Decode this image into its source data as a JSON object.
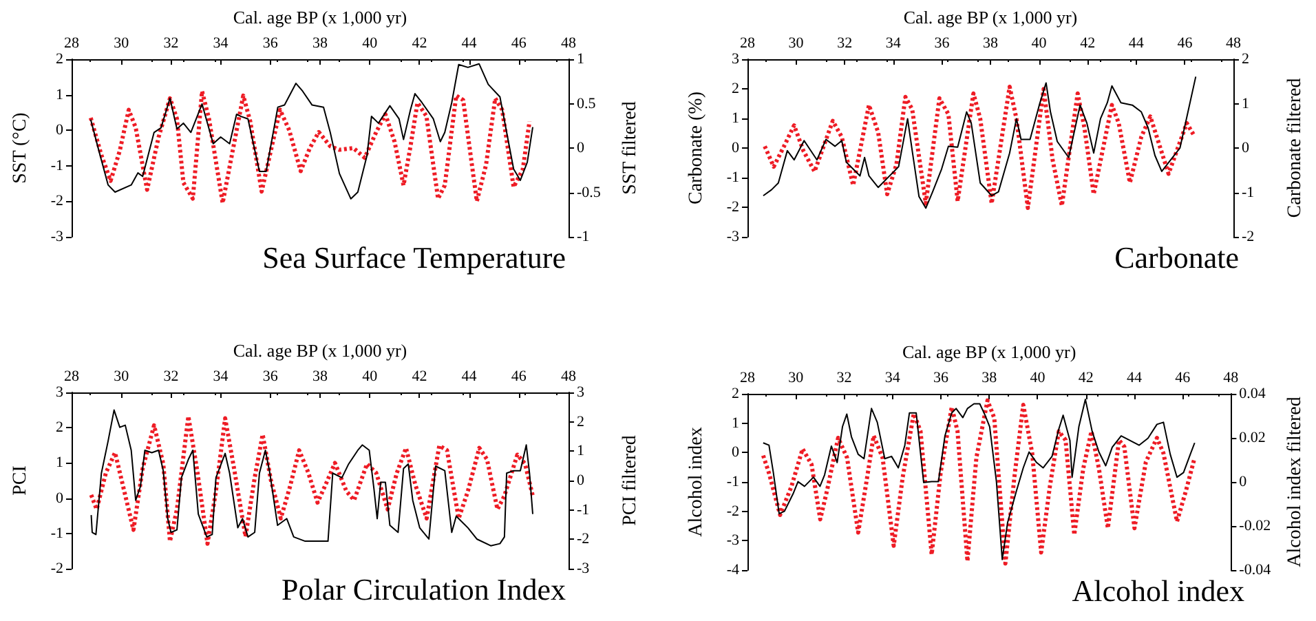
{
  "chart_data": [
    {
      "type": "line",
      "xlabel": "Cal. age BP (x 1,000 yr)",
      "ylabel": "SST (°C)",
      "y2label": "SST filtered",
      "annotations": [
        "Sea Surface Temperature"
      ],
      "marker": "none",
      "xlim": [
        28,
        48
      ],
      "xticks": [
        28,
        30,
        32,
        34,
        36,
        38,
        40,
        42,
        44,
        46,
        48
      ],
      "ylim": [
        -3,
        2
      ],
      "yticks": [
        -3,
        -2,
        -1,
        0,
        1,
        2
      ],
      "y2lim": [
        -1,
        1
      ],
      "y2ticks": [
        -1,
        -0.5,
        0,
        0.5,
        1
      ],
      "series": [
        {
          "color": "#000000",
          "line_style": "solid",
          "x": [
            28.77,
            29.1,
            29.47,
            29.75,
            30.4,
            30.67,
            30.86,
            31.32,
            31.6,
            31.96,
            32.24,
            32.5,
            32.8,
            33.25,
            33.7,
            34.0,
            34.36,
            34.64,
            34.82,
            35.1,
            35.56,
            35.83,
            36.3,
            36.57,
            37.03,
            37.3,
            37.68,
            38.14,
            38.41,
            38.78,
            39.24,
            39.52,
            39.89,
            40.07,
            40.35,
            40.81,
            41.18,
            41.36,
            41.64,
            41.82,
            42.1,
            42.56,
            42.84,
            43.02,
            43.3,
            43.58,
            43.95,
            44.4,
            44.77,
            45.24,
            45.51,
            45.79,
            46.06,
            46.34,
            46.56
          ],
          "values": [
            0.3,
            -0.58,
            -1.54,
            -1.74,
            -1.54,
            -1.2,
            -1.3,
            -0.06,
            0.07,
            0.9,
            0.04,
            0.2,
            -0.06,
            0.74,
            -0.38,
            -0.19,
            -0.38,
            0.45,
            0.39,
            0.32,
            -1.16,
            -1.16,
            0.65,
            0.71,
            1.32,
            1.1,
            0.71,
            0.65,
            -0.06,
            -1.22,
            -1.93,
            -1.74,
            -0.71,
            0.39,
            0.2,
            0.69,
            0.32,
            -0.26,
            0.58,
            1.03,
            0.78,
            0.32,
            -0.32,
            -0.06,
            0.78,
            1.85,
            1.77,
            1.87,
            1.29,
            0.94,
            -0.06,
            -1.09,
            -1.41,
            -0.9,
            0.09
          ]
        },
        {
          "color": "#ee1c25",
          "line_style": "dotted",
          "axis": "y2",
          "x": [
            28.77,
            29.2,
            29.57,
            29.94,
            30.3,
            30.58,
            31.04,
            31.5,
            31.96,
            32.24,
            32.5,
            32.88,
            33.25,
            33.53,
            34.08,
            34.45,
            34.91,
            35.19,
            35.65,
            36.02,
            36.39,
            36.76,
            37.22,
            37.59,
            37.95,
            38.41,
            38.78,
            39.34,
            39.8,
            40.26,
            40.63,
            41.0,
            41.36,
            41.64,
            41.92,
            42.28,
            42.75,
            43.02,
            43.48,
            43.76,
            44.31,
            44.68,
            45.05,
            45.33,
            45.79,
            46.16,
            46.43
          ],
          "values": [
            0.34,
            -0.08,
            -0.37,
            -0.03,
            0.43,
            0.23,
            -0.47,
            0.12,
            0.56,
            0.33,
            -0.39,
            -0.57,
            0.64,
            0.33,
            -0.62,
            -0.08,
            0.59,
            0.3,
            -0.49,
            -0.03,
            0.43,
            0.2,
            -0.26,
            0,
            0.18,
            0.02,
            -0.02,
            0,
            -0.11,
            0.18,
            0.38,
            0.07,
            -0.42,
            0.02,
            0.51,
            0.36,
            -0.57,
            -0.42,
            0.59,
            0.54,
            -0.6,
            -0.19,
            0.56,
            0.43,
            -0.44,
            -0.24,
            0.3
          ]
        }
      ]
    },
    {
      "type": "line",
      "xlabel": "Cal. age BP (x 1,000 yr)",
      "ylabel": "Carbonate (%)",
      "y2label": "Carbonate filtered",
      "annotations": [
        "Carbonate"
      ],
      "marker": "none",
      "xlim": [
        28,
        48
      ],
      "xticks": [
        28,
        30,
        32,
        34,
        36,
        38,
        40,
        42,
        44,
        46,
        48
      ],
      "ylim": [
        -3,
        3
      ],
      "yticks": [
        -3,
        -2,
        -1,
        0,
        1,
        2,
        3
      ],
      "y2lim": [
        -2,
        2
      ],
      "y2ticks": [
        -2,
        -1,
        0,
        1,
        2
      ],
      "series": [
        {
          "color": "#000000",
          "line_style": "solid",
          "x": [
            28.65,
            28.99,
            29.27,
            29.64,
            29.92,
            30.33,
            30.86,
            31.23,
            31.6,
            31.88,
            32.07,
            32.35,
            32.63,
            32.82,
            33.0,
            33.38,
            33.85,
            34.22,
            34.59,
            34.78,
            35.06,
            35.34,
            35.62,
            35.99,
            36.27,
            36.65,
            37.02,
            37.21,
            37.58,
            38.05,
            38.33,
            38.79,
            39.07,
            39.26,
            39.63,
            40.01,
            40.29,
            40.47,
            40.75,
            41.22,
            41.69,
            41.97,
            42.25,
            42.53,
            42.81,
            43.0,
            43.37,
            43.84,
            44.21,
            44.49,
            44.77,
            45.05,
            45.42,
            45.8,
            46.13,
            46.45
          ],
          "values": [
            -1.61,
            -1.41,
            -1.18,
            -0.09,
            -0.4,
            0.25,
            -0.4,
            0.29,
            0.06,
            0.25,
            -0.48,
            -0.71,
            -0.94,
            -0.32,
            -0.94,
            -1.33,
            -0.94,
            -0.63,
            0.99,
            -0.09,
            -1.64,
            -2.03,
            -1.48,
            -0.71,
            0.06,
            0.03,
            1.22,
            0.84,
            -1.18,
            -1.61,
            -1.48,
            -0.17,
            0.99,
            0.29,
            0.29,
            1.45,
            2.2,
            1.22,
            0.22,
            -0.32,
            1.45,
            0.84,
            -0.17,
            0.99,
            1.53,
            2.1,
            1.53,
            1.45,
            1.22,
            0.68,
            -0.25,
            -0.79,
            -0.4,
            0,
            1.22,
            2.41
          ]
        },
        {
          "color": "#ee1c25",
          "line_style": "dotted",
          "axis": "y2",
          "x": [
            28.71,
            29.08,
            29.55,
            29.92,
            30.3,
            30.76,
            31.51,
            31.88,
            32.35,
            33.0,
            33.38,
            33.75,
            34.13,
            34.5,
            34.78,
            35.34,
            35.9,
            36.27,
            36.65,
            37.3,
            37.58,
            38.05,
            38.79,
            39.07,
            39.54,
            40.19,
            40.56,
            40.94,
            41.59,
            41.87,
            42.25,
            43.0,
            43.28,
            43.74,
            44.21,
            44.58,
            45.33,
            46.08,
            46.36
          ],
          "values": [
            0.04,
            -0.42,
            0.09,
            0.51,
            -0.06,
            -0.53,
            0.61,
            0.25,
            -0.84,
            0.97,
            0.35,
            -1.04,
            -0.37,
            1.15,
            0.87,
            -1.25,
            1.12,
            0.76,
            -1.2,
            1.23,
            0.66,
            -1.25,
            1.38,
            0.66,
            -1.35,
            1.33,
            -0.27,
            -1.3,
            1.23,
            0.45,
            -1.04,
            0.97,
            0.56,
            -0.78,
            0.25,
            0.71,
            -0.58,
            0.56,
            0.3
          ]
        }
      ]
    },
    {
      "type": "line",
      "xlabel": "Cal. age BP (x 1,000 yr)",
      "ylabel": "PCI",
      "y2label": "PCI filtered",
      "annotations": [
        "Polar Circulation Index"
      ],
      "marker": "none",
      "xlim": [
        28,
        48
      ],
      "xticks": [
        28,
        30,
        32,
        34,
        36,
        38,
        40,
        42,
        44,
        46,
        48
      ],
      "ylim": [
        -2,
        3
      ],
      "yticks": [
        -2,
        -1,
        0,
        1,
        2,
        3
      ],
      "y2lim": [
        -3,
        3
      ],
      "y2ticks": [
        -3,
        -2,
        -1,
        0,
        1,
        2,
        3
      ],
      "series": [
        {
          "color": "#000000",
          "line_style": "solid",
          "x": [
            28.79,
            28.83,
            28.98,
            29.2,
            29.47,
            29.71,
            29.94,
            30.16,
            30.4,
            30.58,
            30.77,
            30.95,
            31.23,
            31.5,
            31.69,
            31.87,
            32.0,
            32.24,
            32.42,
            32.7,
            32.88,
            33.1,
            33.44,
            33.66,
            33.81,
            34.18,
            34.36,
            34.69,
            34.88,
            35.1,
            35.37,
            35.56,
            35.8,
            35.98,
            36.29,
            36.66,
            36.94,
            37.4,
            38.05,
            38.32,
            38.51,
            38.88,
            39.15,
            39.52,
            39.7,
            39.98,
            40.17,
            40.3,
            40.44,
            40.63,
            40.81,
            41.14,
            41.36,
            41.55,
            41.73,
            42.01,
            42.38,
            42.65,
            43.02,
            43.3,
            43.48,
            43.95,
            44.31,
            44.87,
            45.24,
            45.42,
            45.51,
            45.79,
            46.06,
            46.3,
            46.43,
            46.56
          ],
          "values": [
            -0.48,
            -0.97,
            -1.03,
            0.71,
            1.62,
            2.5,
            2.01,
            2.07,
            1.36,
            -0.06,
            0.33,
            1.36,
            1.29,
            1.36,
            0.78,
            -0.58,
            -0.97,
            -0.9,
            0.58,
            1.1,
            1.36,
            -0.45,
            -1.1,
            -1.03,
            0.58,
            1.27,
            0.71,
            -0.84,
            -0.58,
            -1.1,
            -0.97,
            0.71,
            1.36,
            0.71,
            -0.77,
            -0.58,
            -1.1,
            -1.22,
            -1.22,
            -1.22,
            0.71,
            0.58,
            0.97,
            1.36,
            1.51,
            1.36,
            0.26,
            -0.58,
            0.45,
            0.45,
            -0.77,
            -0.97,
            0.84,
            0.97,
            -0.06,
            -0.84,
            -1.16,
            0.91,
            0.78,
            -0.97,
            -0.51,
            -0.84,
            -1.16,
            -1.35,
            -1.29,
            -1.1,
            0.71,
            0.78,
            0.78,
            1.51,
            0.71,
            -0.45
          ]
        },
        {
          "color": "#ee1c25",
          "line_style": "dotted",
          "axis": "y2",
          "x": [
            28.79,
            29.01,
            29.38,
            29.75,
            30.12,
            30.49,
            30.86,
            31.32,
            31.69,
            31.96,
            32.24,
            32.7,
            33.07,
            33.47,
            33.81,
            34.18,
            34.54,
            35.0,
            35.37,
            35.69,
            36.02,
            36.42,
            36.79,
            37.16,
            37.53,
            37.9,
            38.27,
            38.6,
            39.06,
            39.37,
            39.89,
            40.26,
            40.72,
            41.09,
            41.46,
            41.83,
            42.29,
            42.8,
            43.11,
            43.58,
            43.95,
            44.41,
            44.72,
            45.14,
            45.42,
            45.94,
            46.25,
            46.56
          ],
          "values": [
            -0.49,
            -0.98,
            0.26,
            0.95,
            -0.36,
            -1.68,
            0.41,
            1.88,
            0.57,
            -2.07,
            -0.98,
            2.19,
            0.26,
            -2.15,
            -0.36,
            2.12,
            0.41,
            -1.91,
            0.1,
            1.57,
            0.02,
            -1.29,
            -0.21,
            1.03,
            0.26,
            -0.75,
            -0.05,
            0.6,
            -0.36,
            -0.67,
            0.57,
            0.26,
            -0.98,
            0.26,
            1.11,
            -0.13,
            -1.29,
            1.19,
            1.03,
            -1.29,
            -0.36,
            1.11,
            0.72,
            -0.98,
            -0.52,
            0.88,
            0.57,
            -0.52
          ]
        }
      ]
    },
    {
      "type": "line",
      "xlabel": "Cal. age BP (x 1,000 yr)",
      "ylabel": "Alcohol index",
      "y2label": "Alcohol index filtered",
      "annotations": [
        "Alcohol index"
      ],
      "marker": "none",
      "xlim": [
        28,
        48
      ],
      "xticks": [
        28,
        30,
        32,
        34,
        36,
        38,
        40,
        42,
        44,
        46,
        48
      ],
      "ylim": [
        -4,
        2
      ],
      "yticks": [
        -4,
        -3,
        -2,
        -1,
        0,
        1,
        2
      ],
      "y2lim": [
        -0.04,
        0.04
      ],
      "y2ticks": [
        -0.04,
        -0.02,
        0,
        0.02,
        0.04
      ],
      "series": [
        {
          "color": "#000000",
          "line_style": "solid",
          "x": [
            28.65,
            28.89,
            29.07,
            29.31,
            29.53,
            29.9,
            30.09,
            30.36,
            30.73,
            31.0,
            31.19,
            31.47,
            31.71,
            31.93,
            32.11,
            32.3,
            32.58,
            32.82,
            33.13,
            33.37,
            33.68,
            33.96,
            34.24,
            34.51,
            34.7,
            34.98,
            35.29,
            35.62,
            35.9,
            36.17,
            36.45,
            36.63,
            36.91,
            37.1,
            37.37,
            37.61,
            37.83,
            38.02,
            38.3,
            38.54,
            38.76,
            39.13,
            39.41,
            39.65,
            39.96,
            40.23,
            40.6,
            40.88,
            41.06,
            41.34,
            41.43,
            41.71,
            41.98,
            42.26,
            42.54,
            42.82,
            43.09,
            43.46,
            43.83,
            44.2,
            44.57,
            44.94,
            45.21,
            45.49,
            45.77,
            46.04,
            46.32,
            46.5
          ],
          "values": [
            0.33,
            0.25,
            -0.68,
            -2.08,
            -2.0,
            -1.38,
            -0.99,
            -1.15,
            -0.84,
            -1.15,
            -0.76,
            0.22,
            -0.34,
            0.88,
            1.31,
            0.54,
            -0.06,
            -0.21,
            1.5,
            1.03,
            -0.21,
            -0.13,
            -0.52,
            0.25,
            1.35,
            1.35,
            -1.02,
            -0.99,
            -0.99,
            0.57,
            1.35,
            1.5,
            1.19,
            1.5,
            1.66,
            1.66,
            1.27,
            0.88,
            -0.99,
            -3.64,
            -2.39,
            -1.3,
            -0.52,
            0.02,
            -0.34,
            -0.52,
            -0.13,
            0.8,
            1.27,
            0.41,
            -0.84,
            0.88,
            1.81,
            0.72,
            0.02,
            -0.45,
            0.18,
            0.57,
            0.41,
            0.25,
            0.49,
            0.96,
            1.03,
            -0.06,
            -0.84,
            -0.68,
            -0.06,
            0.33
          ]
        },
        {
          "color": "#ee1c25",
          "line_style": "dotted",
          "axis": "y2",
          "x": [
            28.65,
            28.89,
            29.35,
            29.82,
            30.28,
            30.65,
            31.01,
            31.29,
            31.75,
            32.12,
            32.58,
            32.95,
            33.22,
            33.59,
            34.05,
            34.42,
            34.88,
            35.16,
            35.62,
            35.99,
            36.45,
            36.69,
            37.1,
            37.47,
            37.93,
            38.21,
            38.67,
            39.04,
            39.41,
            39.78,
            40.15,
            40.51,
            40.88,
            41.16,
            41.52,
            41.89,
            42.23,
            42.54,
            42.91,
            43.37,
            43.59,
            44.01,
            44.48,
            44.94,
            45.21,
            45.77,
            46.14,
            46.5
          ],
          "values": [
            0.012,
            0.004,
            -0.015,
            -0.002,
            0.015,
            0.008,
            -0.017,
            -0.004,
            0.02,
            0.011,
            -0.023,
            0.002,
            0.021,
            0.011,
            -0.029,
            0.002,
            0.031,
            0.023,
            -0.033,
            0.004,
            0.034,
            0.023,
            -0.036,
            0.011,
            0.037,
            0.029,
            -0.037,
            0.002,
            0.035,
            0.013,
            -0.032,
            -0.002,
            0.023,
            0.019,
            -0.024,
            0.006,
            0.023,
            0.006,
            -0.021,
            0.019,
            0.016,
            -0.021,
            0.009,
            0.02,
            0.013,
            -0.018,
            -0.004,
            0.011
          ]
        }
      ]
    }
  ]
}
